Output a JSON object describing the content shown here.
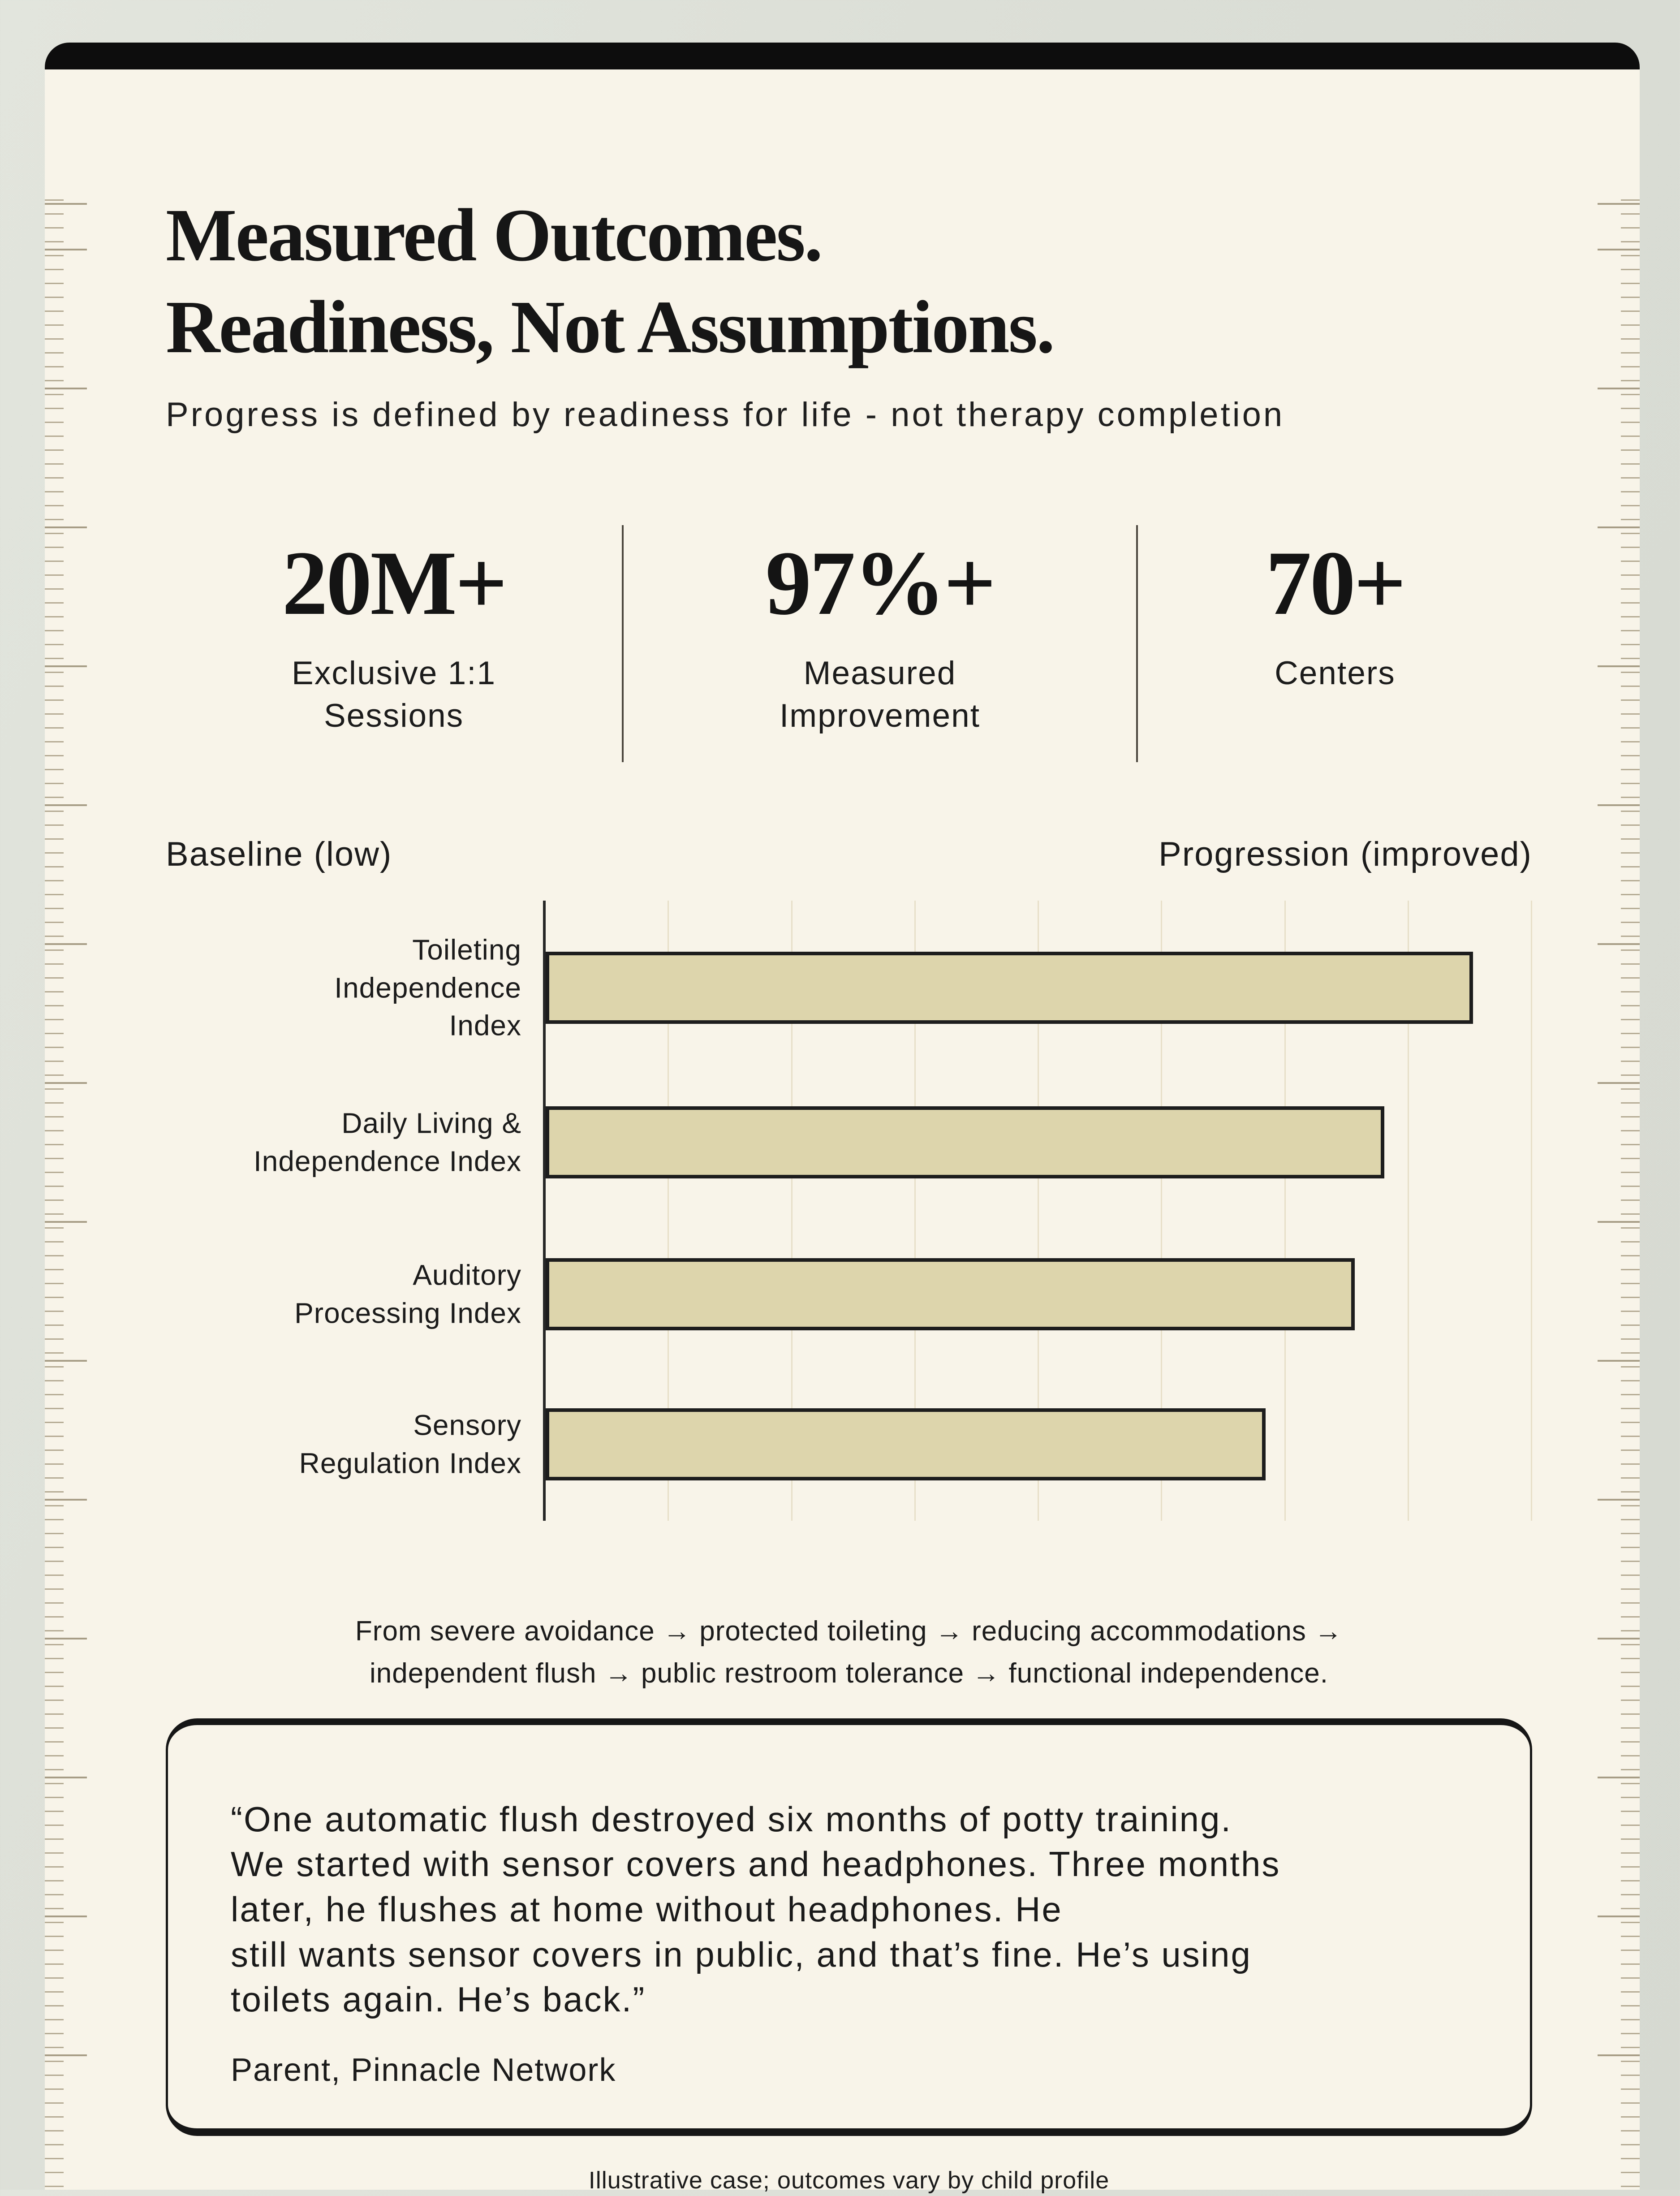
{
  "header": {
    "title": "Measured Outcomes.\nReadiness, Not Assumptions.",
    "subtitle": "Progress is defined by readiness for life - not therapy completion"
  },
  "stats": [
    {
      "value": "20M+",
      "label": "Exclusive 1:1\nSessions"
    },
    {
      "value": "97%+",
      "label": "Measured\nImprovement"
    },
    {
      "value": "70+",
      "label": "Centers"
    }
  ],
  "chart_data": {
    "type": "bar",
    "orientation": "horizontal",
    "axis_label_left": "Baseline (low)",
    "axis_label_right": "Progression (improved)",
    "categories": [
      "Toileting Independence Index",
      "Daily Living & Independence Index",
      "Auditory Processing Index",
      "Sensory Regulation Index"
    ],
    "categories_display": [
      "Toileting\nIndependence\nIndex",
      "Daily Living &\nIndependence Index",
      "Auditory\nProcessing Index",
      "Sensory\nRegulation Index"
    ],
    "values": [
      94,
      85,
      82,
      73
    ],
    "xlim": [
      0,
      100
    ],
    "value_note": "bar lengths estimated as percent of axis width; no numeric tick labels shown",
    "gridline_intervals": 8,
    "grid": true,
    "legend": false,
    "bar_fill": "#ddd5ac",
    "bar_border": "#1d1d1d"
  },
  "progression_note": "From severe avoidance → protected toileting → reducing accommodations →\nindependent flush → public restroom tolerance → functional independence.",
  "quote": {
    "text": "“One automatic flush destroyed six months of potty training.\nWe started with sensor covers and headphones. Three months\nlater, he flushes at home without headphones. He\nstill wants sensor covers in public, and that’s fine. He’s using\ntoilets again. He’s back.”",
    "attribution": "Parent, Pinnacle Network"
  },
  "footnote": "Illustrative case; outcomes vary by child profile",
  "colors": {
    "page_background": "#dbded6",
    "card_background": "#f8f4e9",
    "top_bar": "#0d0d0d",
    "text": "#1b1b1b",
    "bar_fill": "#ddd5ac",
    "bar_border": "#1d1d1d",
    "gridline": "#e7dfc8",
    "ruler_tick": "#b4aa93"
  }
}
